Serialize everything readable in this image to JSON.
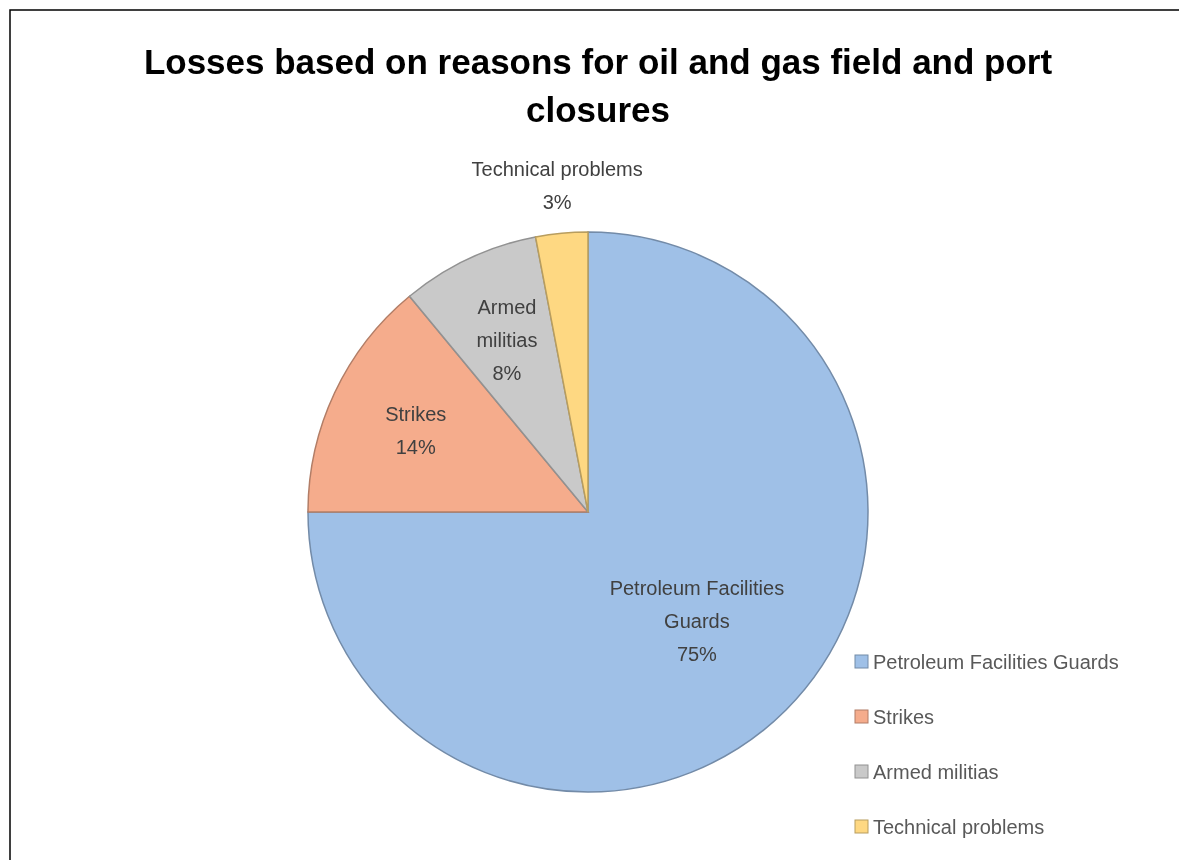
{
  "chart_data": {
    "type": "pie",
    "title": "Losses based on reasons for oil and gas field and port closures",
    "categories": [
      "Petroleum Facilities Guards",
      "Strikes",
      "Armed militias",
      "Technical problems"
    ],
    "values": [
      75,
      14,
      8,
      3
    ],
    "value_labels": [
      "75%",
      "14%",
      "8%",
      "3%"
    ],
    "colors": [
      "#9fc0e7",
      "#f5ac8c",
      "#c9c9c9",
      "#fed882"
    ],
    "legend": "bottom right"
  }
}
